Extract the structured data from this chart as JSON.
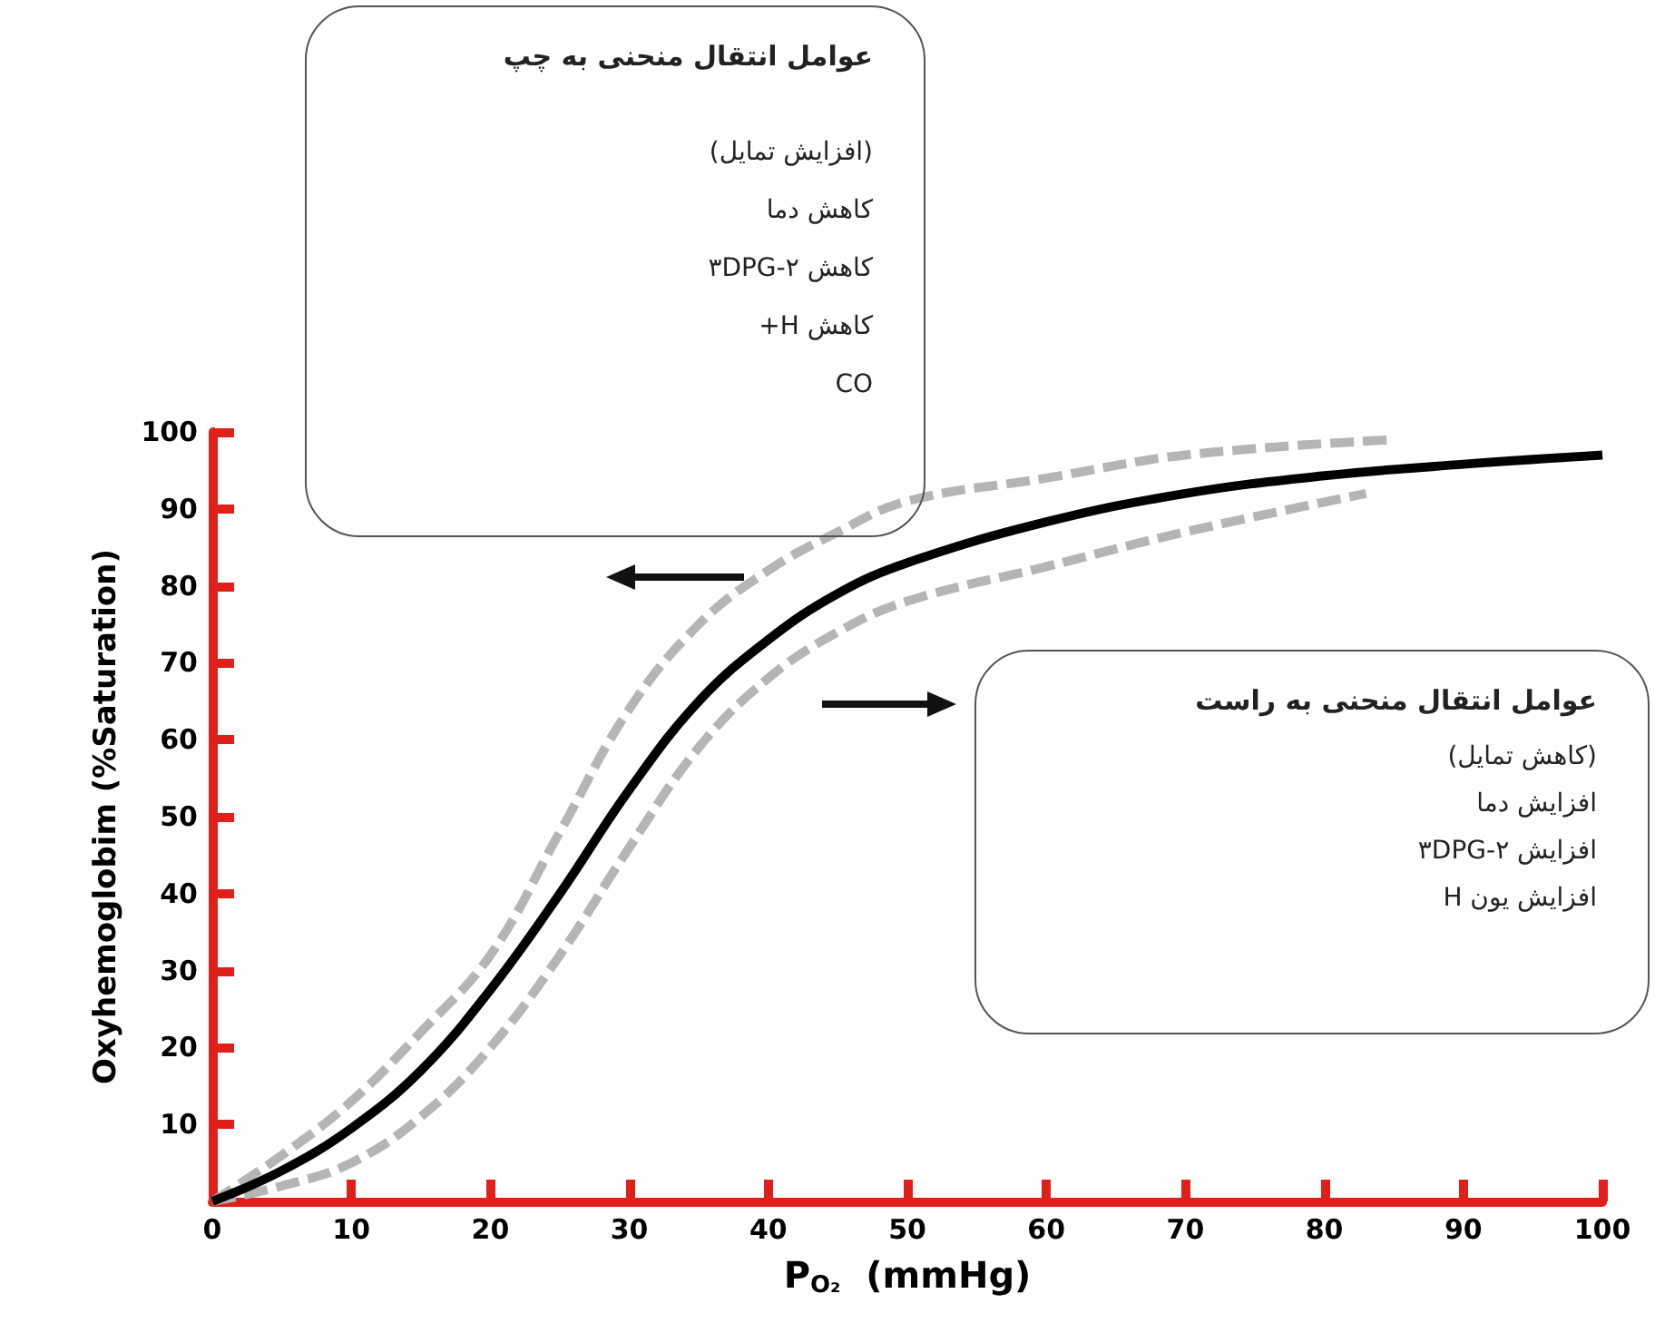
{
  "chart_data": {
    "type": "line",
    "xlabel": "P$_{O₂}$  (mmHg)",
    "ylabel": "Oxyhemoglobim (%Saturation)",
    "xlim": [
      0,
      100
    ],
    "ylim": [
      0,
      100
    ],
    "xticks": [
      0,
      10,
      20,
      30,
      40,
      50,
      60,
      70,
      80,
      90,
      100
    ],
    "yticks": [
      {
        "value": 0,
        "label": null
      },
      10,
      20,
      30,
      40,
      50,
      60,
      70,
      80,
      90,
      100
    ],
    "grid": false,
    "marker": "none",
    "series": [
      {
        "color": "#b5b5b5",
        "line_style": "dashed",
        "x": [
          0,
          5,
          10,
          15,
          20,
          25,
          30,
          35,
          40,
          45,
          50,
          60,
          70,
          85
        ],
        "values": [
          0,
          6,
          13,
          22,
          32,
          48,
          64,
          75,
          82,
          87,
          91,
          94,
          97,
          99
        ]
      },
      {
        "color": "#b5b5b5",
        "line_style": "dashed",
        "x": [
          0,
          5,
          10,
          15,
          20,
          25,
          30,
          35,
          40,
          45,
          50,
          60,
          70,
          83
        ],
        "values": [
          0,
          2,
          5,
          11,
          20,
          32,
          46,
          59,
          68,
          74,
          78,
          82.5,
          87,
          92
        ]
      },
      {
        "color": "#000000",
        "line_style": "solid",
        "x": [
          0,
          5,
          10,
          15,
          20,
          25,
          30,
          35,
          40,
          45,
          50,
          60,
          70,
          80,
          90,
          100
        ],
        "values": [
          0,
          4,
          9.5,
          17,
          27.5,
          40,
          53.5,
          65,
          73,
          79,
          83,
          88.3,
          92,
          94.3,
          95.8,
          97
        ]
      }
    ],
    "annotations": [
      "عوامل انتقال منحنی به چپ\n(افزایش تمایل)\nکاهش دما\nکاهش ۲-۳DPG\nکاهش H+\nCO",
      "عوامل انتقال منحنی به راست\n(کاهش تمایل)\nافزایش دما\nافزایش ۲-۳DPG\nافزایش یون H"
    ]
  }
}
